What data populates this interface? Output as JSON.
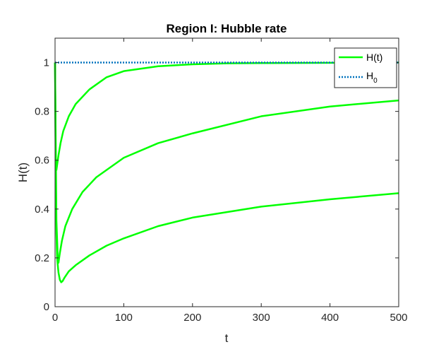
{
  "chart_data": {
    "type": "line",
    "title": "Region I: Hubble rate",
    "xlabel": "t",
    "ylabel": "H(t)",
    "xlim": [
      0,
      500
    ],
    "ylim": [
      0,
      1.1
    ],
    "xticks": [
      0,
      100,
      200,
      300,
      400,
      500
    ],
    "yticks": [
      0,
      0.2,
      0.4,
      0.6,
      0.8,
      1
    ],
    "xtick_labels": [
      "0",
      "100",
      "200",
      "300",
      "400",
      "500"
    ],
    "ytick_labels": [
      "0",
      "0.2",
      "0.4",
      "0.6",
      "0.8",
      "1"
    ],
    "grid": false,
    "legend": {
      "placement": "top-right",
      "entries": [
        {
          "label": "H(t)",
          "label_main": "H(t)",
          "label_sub": ""
        },
        {
          "label": "H_0",
          "label_main": "H",
          "label_sub": "0"
        }
      ]
    },
    "colors": {
      "h_series": "#00ff00",
      "h0": "#0072bd"
    },
    "series": [
      {
        "style": "solid",
        "x": [
          0,
          1,
          2,
          3,
          5,
          8,
          12,
          20,
          30,
          50,
          75,
          100,
          150,
          200,
          250,
          300,
          400,
          500
        ],
        "y": [
          1.0,
          0.6,
          0.56,
          0.58,
          0.62,
          0.67,
          0.72,
          0.78,
          0.83,
          0.89,
          0.94,
          0.965,
          0.985,
          0.993,
          0.997,
          0.998,
          0.999,
          1.0
        ]
      },
      {
        "style": "solid",
        "x": [
          0,
          2,
          4,
          5,
          7,
          10,
          15,
          25,
          40,
          60,
          100,
          150,
          200,
          300,
          400,
          500
        ],
        "y": [
          1.0,
          0.35,
          0.2,
          0.18,
          0.22,
          0.27,
          0.33,
          0.4,
          0.47,
          0.53,
          0.61,
          0.67,
          0.71,
          0.78,
          0.82,
          0.845
        ]
      },
      {
        "style": "solid",
        "x": [
          0,
          1,
          2,
          3,
          5,
          7,
          9,
          11,
          14,
          20,
          30,
          50,
          75,
          100,
          150,
          200,
          300,
          400,
          500
        ],
        "y": [
          1.0,
          0.55,
          0.3,
          0.2,
          0.14,
          0.11,
          0.1,
          0.105,
          0.12,
          0.145,
          0.17,
          0.21,
          0.25,
          0.28,
          0.33,
          0.365,
          0.41,
          0.44,
          0.465
        ]
      },
      {
        "name": "H_0",
        "style": "dotted",
        "x": [
          0,
          500
        ],
        "y": [
          1.0,
          1.0
        ]
      }
    ]
  }
}
